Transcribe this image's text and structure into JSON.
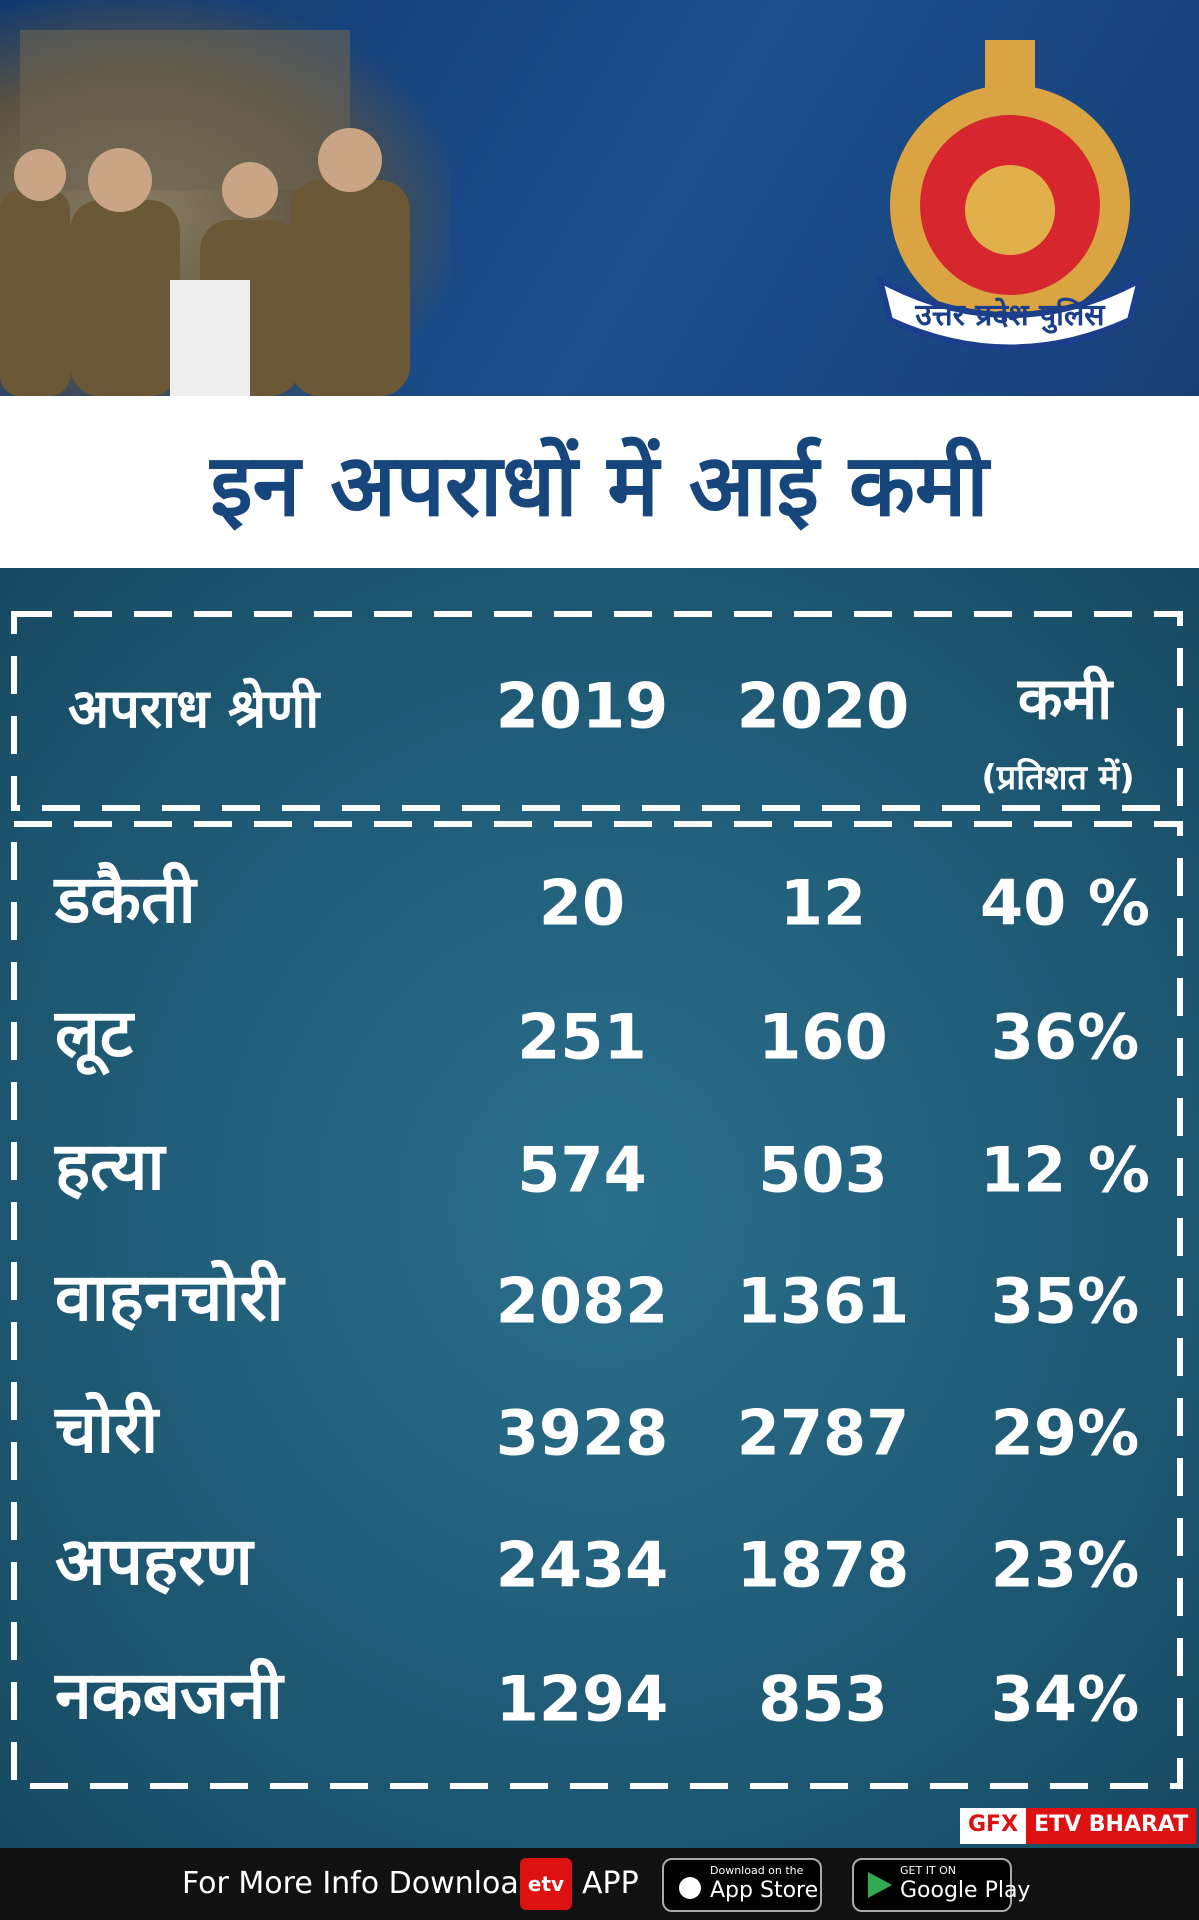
{
  "header": {
    "title": "इन अपराधों में आई कमी",
    "logo_text": "उत्तर प्रदेश पुलिस"
  },
  "table": {
    "headers": [
      "अपराध श्रेणी",
      "2019",
      "2020",
      "कमी"
    ],
    "header_note": "(प्रतिशत में)",
    "rows": [
      [
        "डकैती",
        20,
        12,
        "40 %"
      ],
      [
        "लूट",
        251,
        160,
        "36%"
      ],
      [
        "हत्या",
        574,
        503,
        "12 %"
      ],
      [
        "वाहनचोरी",
        2082,
        1361,
        "35%"
      ],
      [
        "चोरी",
        3928,
        2787,
        "29%"
      ],
      [
        "अपहरण",
        2434,
        1878,
        "23%"
      ],
      [
        "नकबजनी",
        1294,
        853,
        "34%"
      ]
    ]
  },
  "credit": {
    "gfx": "GFX",
    "brand": "ETV BHARAT"
  },
  "footer": {
    "text": "For More Info Download",
    "app_icon": "etv",
    "app": "APP",
    "appstore_small": "Download on the",
    "appstore": "App Store",
    "googleplay_small": "GET IT ON",
    "googleplay": "Google Play"
  }
}
